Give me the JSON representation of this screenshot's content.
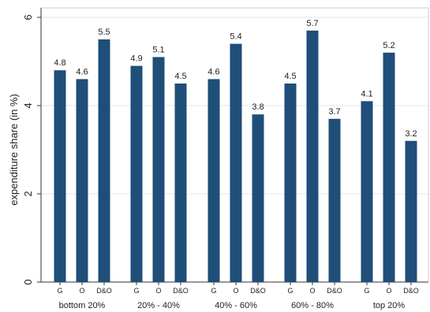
{
  "chart_data": {
    "type": "bar",
    "ylabel": "expenditure share (in %)",
    "xlabel": "",
    "ylim": [
      0,
      6
    ],
    "yticks": [
      0,
      2,
      4,
      6
    ],
    "grid": "horizontal",
    "groups": [
      {
        "label": "bottom 20%",
        "bars": [
          {
            "label": "G",
            "value": 4.8
          },
          {
            "label": "O",
            "value": 4.6
          },
          {
            "label": "D&O",
            "value": 5.5
          }
        ]
      },
      {
        "label": "20% - 40%",
        "bars": [
          {
            "label": "G",
            "value": 4.9
          },
          {
            "label": "O",
            "value": 5.1
          },
          {
            "label": "D&O",
            "value": 4.5
          }
        ]
      },
      {
        "label": "40% - 60%",
        "bars": [
          {
            "label": "G",
            "value": 4.6
          },
          {
            "label": "O",
            "value": 5.4
          },
          {
            "label": "D&O",
            "value": 3.8
          }
        ]
      },
      {
        "label": "60% - 80%",
        "bars": [
          {
            "label": "G",
            "value": 4.5
          },
          {
            "label": "O",
            "value": 5.7
          },
          {
            "label": "D&O",
            "value": 3.7
          }
        ]
      },
      {
        "label": "top 20%",
        "bars": [
          {
            "label": "G",
            "value": 4.1
          },
          {
            "label": "O",
            "value": 5.2
          },
          {
            "label": "D&O",
            "value": 3.2
          }
        ]
      }
    ],
    "bar_color": "#1f4e79",
    "grid_color": "#e6e6e6",
    "axis_color": "#333333"
  }
}
